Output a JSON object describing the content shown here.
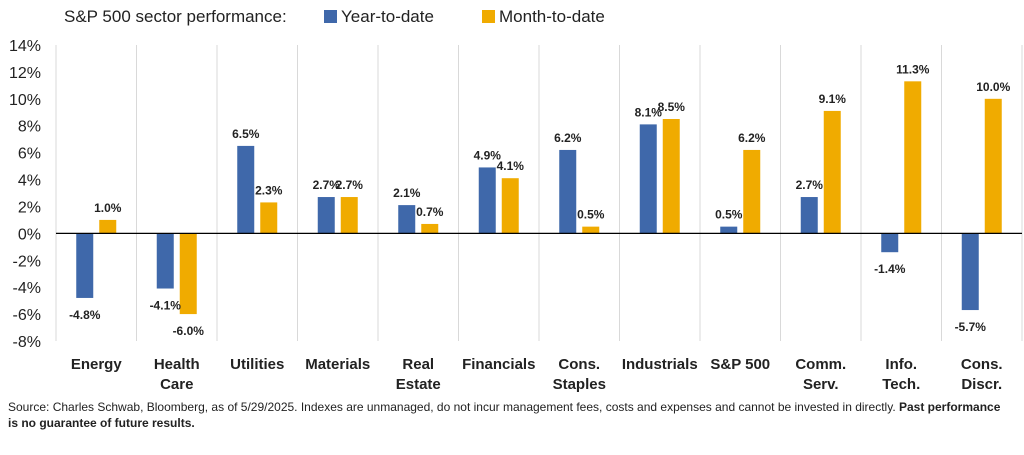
{
  "chart_data": {
    "type": "bar",
    "title": "S&P 500 sector performance:",
    "legend_position": "top",
    "colors": {
      "ytd": "#3f68aa",
      "mtd": "#f0ab00",
      "axis": "#000000",
      "grid": "#d9d9d9",
      "text": "#222222"
    },
    "categories": [
      [
        "Energy"
      ],
      [
        "Health",
        "Care"
      ],
      [
        "Utilities"
      ],
      [
        "Materials"
      ],
      [
        "Real",
        "Estate"
      ],
      [
        "Financials"
      ],
      [
        "Cons.",
        "Staples"
      ],
      [
        "Industrials"
      ],
      [
        "S&P 500"
      ],
      [
        "Comm.",
        "Serv."
      ],
      [
        "Info.",
        "Tech."
      ],
      [
        "Cons.",
        "Discr."
      ]
    ],
    "series": [
      {
        "name": "Year-to-date",
        "key": "ytd",
        "values": [
          -4.8,
          -4.1,
          6.5,
          2.7,
          2.1,
          4.9,
          6.2,
          8.1,
          0.5,
          2.7,
          -1.4,
          -5.7
        ],
        "labels": [
          "-4.8%",
          "-4.1%",
          "6.5%",
          "2.7%",
          "2.1%",
          "4.9%",
          "6.2%",
          "8.1%",
          "0.5%",
          "2.7%",
          "-1.4%",
          "-5.7%"
        ]
      },
      {
        "name": "Month-to-date",
        "key": "mtd",
        "values": [
          1.0,
          -6.0,
          2.3,
          2.7,
          0.7,
          4.1,
          0.5,
          8.5,
          6.2,
          9.1,
          11.3,
          10.0
        ],
        "labels": [
          "1.0%",
          "-6.0%",
          "2.3%",
          "2.7%",
          "0.7%",
          "4.1%",
          "0.5%",
          "8.5%",
          "6.2%",
          "9.1%",
          "11.3%",
          "10.0%"
        ]
      }
    ],
    "ylim": [
      -8,
      14
    ],
    "yticks": [
      -8,
      -6,
      -4,
      -2,
      0,
      2,
      4,
      6,
      8,
      10,
      12,
      14
    ],
    "ytick_labels": [
      "-8%",
      "-6%",
      "-4%",
      "-2%",
      "0%",
      "2%",
      "4%",
      "6%",
      "8%",
      "10%",
      "12%",
      "14%"
    ],
    "xlabel": "",
    "ylabel": "",
    "grid": {
      "horizontal": false,
      "vertical_separators": true
    }
  },
  "source": {
    "text": "Source: Charles Schwab, Bloomberg, as of 5/29/2025. Indexes are unmanaged, do not incur management fees, costs and expenses and cannot be invested in directly.",
    "emphasis": "Past performance is no guarantee of future results."
  }
}
